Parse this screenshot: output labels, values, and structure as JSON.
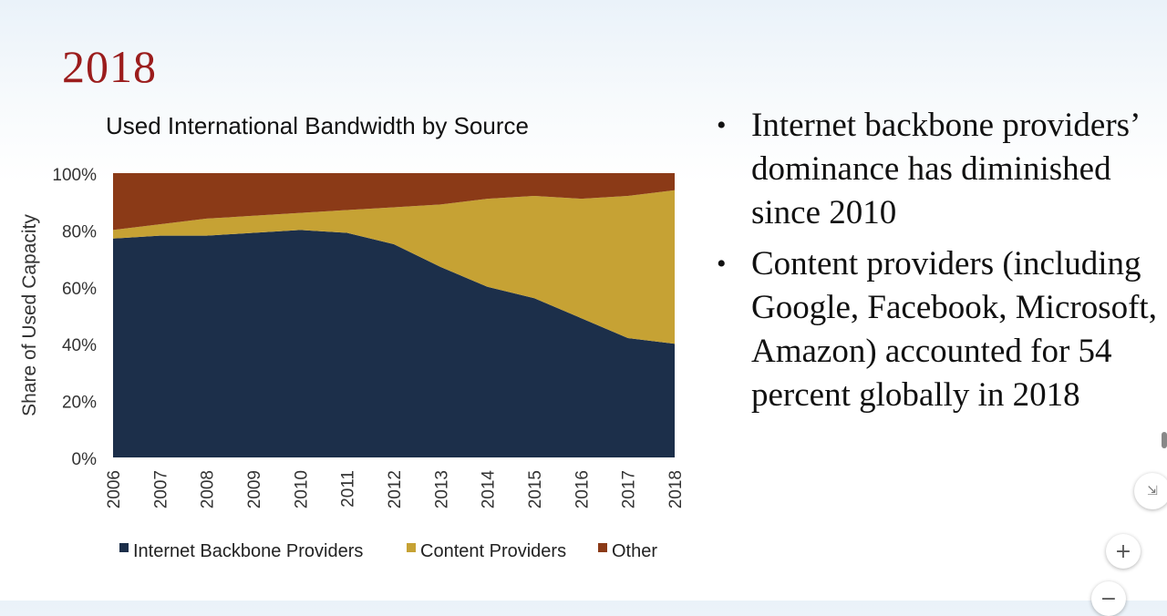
{
  "slide": {
    "title": "2018"
  },
  "bullets": [
    "Internet backbone providers’ dominance has diminished since 2010",
    "Content providers (including Google, Facebook, Microsoft, Amazon) accounted for 54 percent globally in 2018"
  ],
  "controls": {
    "zoom_in_label": "+",
    "zoom_out_label": "−",
    "side_icon_label": "⇲"
  },
  "colors": {
    "backbone": "#1c2f4a",
    "content": "#c6a234",
    "other": "#8b3a17"
  },
  "chart_data": {
    "type": "area",
    "stacked": true,
    "title": "Used International Bandwidth by Source",
    "xlabel": "",
    "ylabel": "Share of Used Capacity",
    "ylim": [
      0,
      100
    ],
    "yticks": [
      "0%",
      "20%",
      "40%",
      "60%",
      "80%",
      "100%"
    ],
    "x": [
      "2006",
      "2007",
      "2008",
      "2009",
      "2010",
      "2011",
      "2012",
      "2013",
      "2014",
      "2015",
      "2016",
      "2017",
      "2018"
    ],
    "series": [
      {
        "name": "Internet Backbone Providers",
        "values": [
          77,
          78,
          78,
          79,
          80,
          79,
          75,
          67,
          60,
          56,
          49,
          42,
          40
        ]
      },
      {
        "name": "Content Providers",
        "values": [
          3,
          4,
          6,
          6,
          6,
          8,
          13,
          22,
          31,
          36,
          42,
          50,
          54
        ]
      },
      {
        "name": "Other",
        "values": [
          20,
          18,
          16,
          15,
          14,
          13,
          12,
          11,
          9,
          8,
          9,
          8,
          6
        ]
      }
    ],
    "legend": "bottom",
    "grid": false
  }
}
